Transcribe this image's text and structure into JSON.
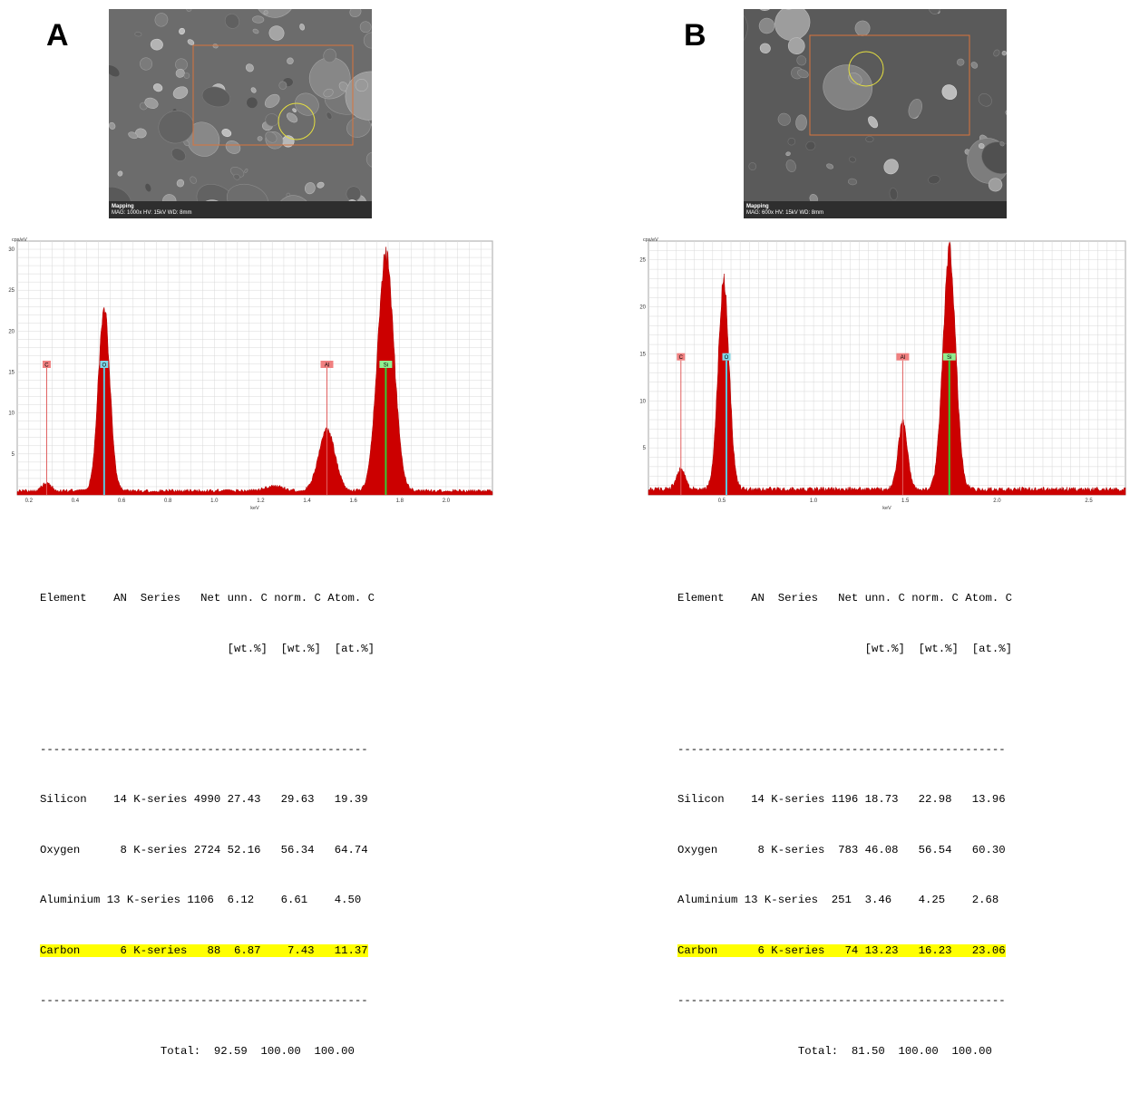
{
  "panels": [
    {
      "letter": "A",
      "sem": {
        "caption_title": "Mapping",
        "caption_params": "MAG: 1000x  HV: 15kV  WD: 8mm"
      },
      "spectrum": {
        "y_unit": "cps/eV",
        "x_unit": "keV"
      },
      "table": {
        "header1": "Element    AN  Series   Net unn. C norm. C Atom. C",
        "header2": "                            [wt.%]  [wt.%]  [at.%]",
        "separator": "-------------------------------------------------",
        "rows": [
          {
            "text": "Silicon    14 K-series 4990 27.43   29.63   19.39",
            "highlight": false
          },
          {
            "text": "Oxygen      8 K-series 2724 52.16   56.34   64.74",
            "highlight": false
          },
          {
            "text": "Aluminium 13 K-series 1106  6.12    6.61    4.50",
            "highlight": false
          },
          {
            "text": "Carbon      6 K-series   88  6.87    7.43   11.37",
            "highlight": true
          }
        ],
        "total": "                  Total:  92.59  100.00  100.00"
      }
    },
    {
      "letter": "B",
      "sem": {
        "caption_title": "Mapping",
        "caption_params": "MAG: 600x  HV: 15kV  WD: 8mm"
      },
      "spectrum": {
        "y_unit": "cps/eV",
        "x_unit": "keV"
      },
      "table": {
        "header1": "Element    AN  Series   Net unn. C norm. C Atom. C",
        "header2": "                            [wt.%]  [wt.%]  [at.%]",
        "separator": "-------------------------------------------------",
        "rows": [
          {
            "text": "Silicon    14 K-series 1196 18.73   22.98   13.96",
            "highlight": false
          },
          {
            "text": "Oxygen      8 K-series  783 46.08   56.54   60.30",
            "highlight": false
          },
          {
            "text": "Aluminium 13 K-series  251  3.46    4.25    2.68",
            "highlight": false
          },
          {
            "text": "Carbon      6 K-series   74 13.23   16.23   23.06",
            "highlight": true
          }
        ],
        "total": "                  Total:  81.50  100.00  100.00"
      }
    }
  ],
  "chart_data": [
    {
      "type": "area",
      "title": "",
      "xlabel": "keV",
      "ylabel": "cps/eV",
      "xlim": [
        0.15,
        2.2
      ],
      "ylim": [
        0,
        31
      ],
      "xticks": [
        0.2,
        0.4,
        0.6,
        0.8,
        1.0,
        1.2,
        1.4,
        1.6,
        1.8,
        2.0
      ],
      "yticks": [
        5,
        10,
        15,
        20,
        25,
        30
      ],
      "grid": true,
      "fill_color": "#cc0000",
      "peak_markers": [
        {
          "label": "C",
          "x": 0.277,
          "height": 15.5,
          "color": "#f08080"
        },
        {
          "label": "O",
          "x": 0.525,
          "height": 15.5,
          "color": "#7fd8e8"
        },
        {
          "label": "Al",
          "x": 1.486,
          "height": 15.5,
          "color": "#f08080"
        },
        {
          "label": "Si",
          "x": 1.74,
          "height": 15.5,
          "color": "#90ee90"
        }
      ],
      "peaks": [
        {
          "x": 0.277,
          "height": 1.0,
          "width": 0.02
        },
        {
          "x": 0.525,
          "height": 23.5,
          "width": 0.025
        },
        {
          "x": 1.26,
          "height": 0.6,
          "width": 0.04
        },
        {
          "x": 1.486,
          "height": 7.8,
          "width": 0.035
        },
        {
          "x": 1.74,
          "height": 30.0,
          "width": 0.035
        }
      ],
      "baseline": 0.5
    },
    {
      "type": "area",
      "title": "",
      "xlabel": "keV",
      "ylabel": "cps/eV",
      "xlim": [
        0.1,
        2.7
      ],
      "ylim": [
        0,
        27
      ],
      "xticks": [
        0.5,
        1.0,
        1.5,
        2.0,
        2.5
      ],
      "yticks": [
        5,
        10,
        15,
        20,
        25
      ],
      "grid": true,
      "fill_color": "#cc0000",
      "peak_markers": [
        {
          "label": "C",
          "x": 0.277,
          "height": 14.3,
          "color": "#f08080"
        },
        {
          "label": "O",
          "x": 0.525,
          "height": 14.3,
          "color": "#7fd8e8"
        },
        {
          "label": "Al",
          "x": 1.486,
          "height": 14.3,
          "color": "#f08080"
        },
        {
          "label": "Si",
          "x": 1.74,
          "height": 14.3,
          "color": "#90ee90"
        }
      ],
      "peaks": [
        {
          "x": 0.277,
          "height": 2.2,
          "width": 0.025
        },
        {
          "x": 0.51,
          "height": 23.0,
          "width": 0.03
        },
        {
          "x": 1.486,
          "height": 7.5,
          "width": 0.025
        },
        {
          "x": 1.74,
          "height": 26.5,
          "width": 0.035
        }
      ],
      "baseline": 0.6
    }
  ]
}
